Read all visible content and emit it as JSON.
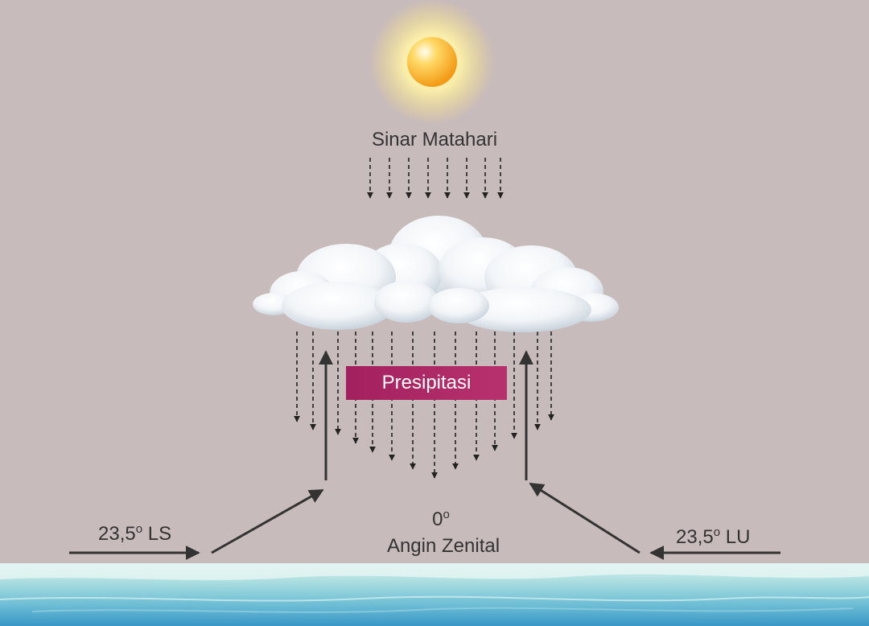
{
  "labels": {
    "sunlight": "Sinar Matahari",
    "precipitation": "Presipitasi",
    "left_lat_value": "23,5",
    "left_lat_sup": "o",
    "left_lat_dir": "LS",
    "right_lat_value": "23,5",
    "right_lat_sup": "o",
    "right_lat_dir": "LU",
    "equator_value": "0",
    "equator_sup": "o",
    "zenith_wind": "Angin Zenital"
  },
  "colors": {
    "background": "#c8bbbb",
    "badge": "#a3205f",
    "arrow": "#333333",
    "sun_core": "#f5a21a",
    "sun_glow": "#fff3a8",
    "sea_top": "#cfece9",
    "sea_bottom": "#3a97c6"
  }
}
